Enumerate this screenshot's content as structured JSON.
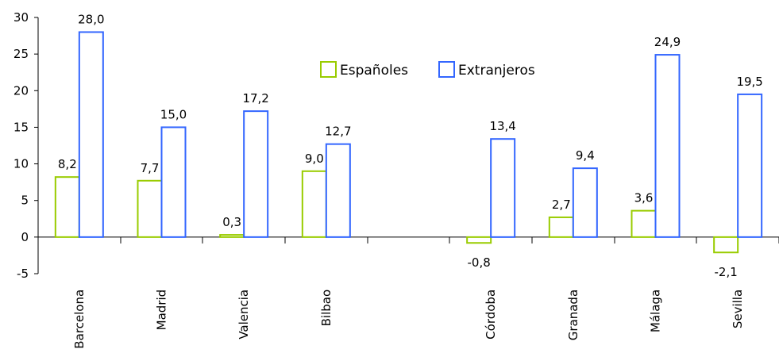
{
  "chart_data": {
    "type": "bar",
    "categories": [
      "Barcelona",
      "Madrid",
      "Valencia",
      "Bilbao",
      "",
      "Córdoba",
      "Granada",
      "Málaga",
      "Sevilla"
    ],
    "series": [
      {
        "name": "Españoles",
        "color": "#99cc00",
        "values": [
          8.2,
          7.7,
          0.3,
          9.0,
          null,
          -0.8,
          2.7,
          3.6,
          -2.1
        ],
        "labels": [
          "8,2",
          "7,7",
          "0,3",
          "9,0",
          "",
          "-0,8",
          "2,7",
          "3,6",
          "-2,1"
        ]
      },
      {
        "name": "Extranjeros",
        "color": "#3366ff",
        "values": [
          28.0,
          15.0,
          17.2,
          12.7,
          null,
          13.4,
          9.4,
          24.9,
          19.5
        ],
        "labels": [
          "28,0",
          "15,0",
          "17,2",
          "12,7",
          "",
          "13,4",
          "9,4",
          "24,9",
          "19,5"
        ]
      }
    ],
    "ylim": [
      -5,
      30
    ],
    "yticks": [
      "-5",
      "0",
      "5",
      "10",
      "15",
      "20",
      "25",
      "30"
    ],
    "ytick_values": [
      -5,
      0,
      5,
      10,
      15,
      20,
      25,
      30
    ],
    "legend_position": "top-center",
    "grid": false,
    "title": "",
    "xlabel": "",
    "ylabel": ""
  }
}
